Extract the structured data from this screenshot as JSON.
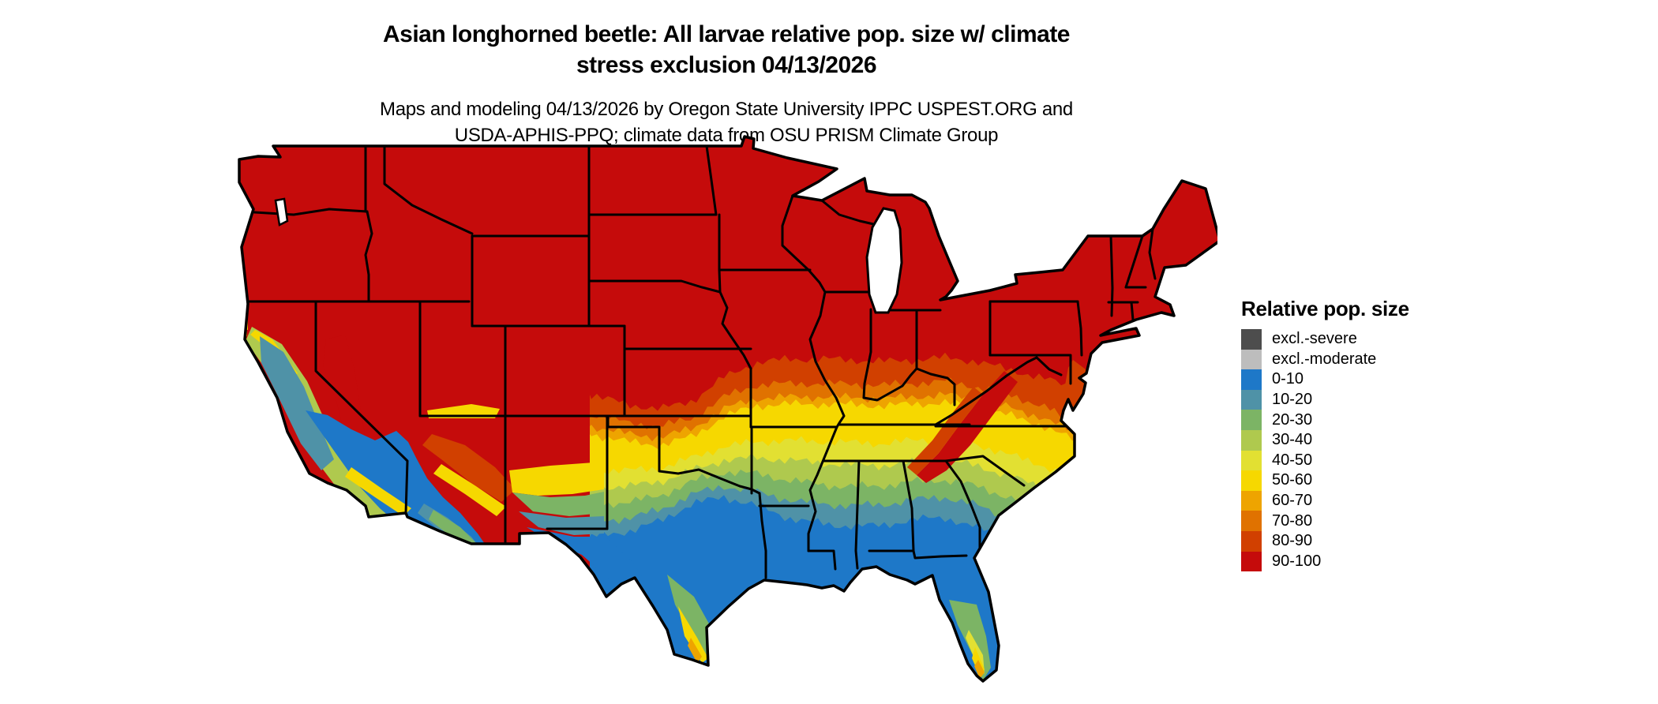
{
  "title": {
    "line1": "Asian longhorned beetle: All larvae relative pop. size w/ climate",
    "line2": "stress exclusion 04/13/2026"
  },
  "subtitle": {
    "line1": "Maps and modeling 04/13/2026 by Oregon State University IPPC USPEST.ORG and",
    "line2": "USDA-APHIS-PPQ; climate data from OSU PRISM Climate Group"
  },
  "legend": {
    "title": "Relative pop. size",
    "items": [
      {
        "label": "excl.-severe",
        "color": "#4d4d4d"
      },
      {
        "label": "excl.-moderate",
        "color": "#bdbdbd"
      },
      {
        "label": "0-10",
        "color": "#1e78c8"
      },
      {
        "label": "10-20",
        "color": "#4f92a7"
      },
      {
        "label": "20-30",
        "color": "#7cb465"
      },
      {
        "label": "30-40",
        "color": "#afc94e"
      },
      {
        "label": "40-50",
        "color": "#e2e032"
      },
      {
        "label": "50-60",
        "color": "#f6d800"
      },
      {
        "label": "60-70",
        "color": "#eea400"
      },
      {
        "label": "70-80",
        "color": "#e07200"
      },
      {
        "label": "80-90",
        "color": "#d14000"
      },
      {
        "label": "90-100",
        "color": "#c50b0b"
      }
    ]
  },
  "map": {
    "type": "choropleth-raster",
    "region": "conterminous United States",
    "boundary_color": "#000000",
    "water_color": "#ffffff",
    "pattern_by_region": {
      "northern_states_and_new_england": "90-100",
      "central_plains_and_ohio_valley": "80-90 to 60-70 gradient southward",
      "mid_latitude_band_missouri_kentucky_virginia": "50-60",
      "southeast_piedmont": "40-50 to 20-30",
      "gulf_coast_texas_louisiana_florida_panhandle": "0-10",
      "southwest_low_deserts_socal_arizona": "0-10 to 10-20",
      "rocky_mountains_great_basin_sierra": "90-100",
      "california_coast_and_central_valley": "10-20 to 40-50",
      "appalachian_ridge": "90-100 tongue extending south",
      "south_florida_and_south_texas_tips": "20-30 to 60-70, 90-100 keys"
    }
  }
}
